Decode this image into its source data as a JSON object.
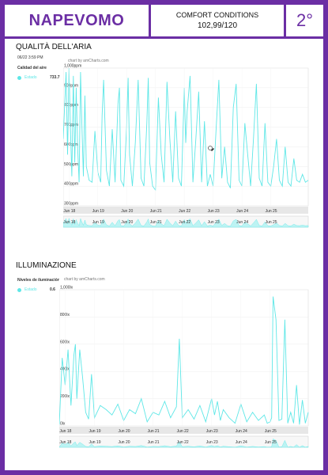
{
  "header": {
    "brand": "NAPEVOMO",
    "comfort_label": "COMFORT CONDITIONS",
    "comfort_value": "102,99/120",
    "floor": "2°"
  },
  "colors": {
    "accent": "#6b2ea4",
    "series": "#5ee7e7"
  },
  "air": {
    "title": "QUALITÀ DELL'ARIA",
    "timestamp": "06/22 3:59 PM",
    "legend_title": "Calidad del aire",
    "series_name": "Estado",
    "series_value": "733.7",
    "credit": "chart by amCharts.com"
  },
  "light": {
    "title": "ILLUMINAZIONE",
    "legend_title": "Niveles de iluminación",
    "series_name": "Estado",
    "series_value": "0.6",
    "credit": "chart by amCharts.com"
  },
  "chart_data": [
    {
      "type": "line",
      "title": "QUALITÀ DELL'ARIA",
      "y_ticks": [
        "300ppm",
        "400ppm",
        "500ppm",
        "600ppm",
        "700ppm",
        "800ppm",
        "900ppm",
        "1,000ppm"
      ],
      "ylim": [
        300,
        1000
      ],
      "x_ticks": [
        "Jun 18",
        "Jun 19",
        "Jun 20",
        "Jun 21",
        "Jun 22",
        "Jun 23",
        "Jun 24",
        "Jun 25"
      ],
      "x_range_days": [
        17.8,
        26.3
      ],
      "series": [
        {
          "name": "Estado",
          "x": [
            17.8,
            17.9,
            17.95,
            18.0,
            18.05,
            18.1,
            18.15,
            18.2,
            18.25,
            18.3,
            18.35,
            18.4,
            18.45,
            18.5,
            18.55,
            18.6,
            18.7,
            18.8,
            18.9,
            19.0,
            19.1,
            19.15,
            19.2,
            19.3,
            19.4,
            19.5,
            19.6,
            19.7,
            19.75,
            19.8,
            19.9,
            20.0,
            20.05,
            20.1,
            20.2,
            20.3,
            20.4,
            20.5,
            20.6,
            20.7,
            20.75,
            20.8,
            20.9,
            21.0,
            21.1,
            21.2,
            21.3,
            21.4,
            21.5,
            21.6,
            21.7,
            21.8,
            21.9,
            22.0,
            22.05,
            22.1,
            22.2,
            22.3,
            22.4,
            22.5,
            22.6,
            22.7,
            22.8,
            22.9,
            23.0,
            23.1,
            23.2,
            23.3,
            23.4,
            23.5,
            23.6,
            23.7,
            23.8,
            23.9,
            24.0,
            24.1,
            24.2,
            24.3,
            24.4,
            24.5,
            24.6,
            24.7,
            24.8,
            24.9,
            25.0,
            25.1,
            25.2,
            25.3,
            25.4,
            25.5,
            25.6,
            25.7,
            25.8,
            25.9,
            26.0,
            26.1,
            26.2,
            26.3
          ],
          "y": [
            640,
            980,
            560,
            1000,
            700,
            450,
            960,
            520,
            900,
            600,
            420,
            980,
            700,
            450,
            860,
            500,
            430,
            420,
            680,
            470,
            420,
            760,
            940,
            480,
            400,
            690,
            420,
            820,
            900,
            430,
            400,
            700,
            950,
            560,
            400,
            620,
            940,
            440,
            400,
            720,
            950,
            520,
            400,
            380,
            850,
            560,
            420,
            930,
            640,
            420,
            780,
            440,
            400,
            900,
            620,
            780,
            960,
            420,
            640,
            880,
            420,
            730,
            400,
            460,
            400,
            680,
            940,
            440,
            600,
            420,
            390,
            800,
            920,
            430,
            400,
            720,
            560,
            400,
            640,
            920,
            440,
            400,
            720,
            420,
            400,
            500,
            640,
            430,
            400,
            600,
            420,
            400,
            540,
            430,
            420,
            460,
            420,
            430
          ]
        }
      ]
    },
    {
      "type": "line",
      "title": "ILLUMINAZIONE",
      "y_ticks": [
        "0lx",
        "200lx",
        "400lx",
        "600lx",
        "800lx",
        "1,000lx"
      ],
      "ylim": [
        0,
        1000
      ],
      "x_ticks": [
        "Jun 18",
        "Jun 19",
        "Jun 20",
        "Jun 21",
        "Jun 22",
        "Jun 23",
        "Jun 24",
        "Jun 25"
      ],
      "x_range_days": [
        17.8,
        26.3
      ],
      "series": [
        {
          "name": "Estado",
          "x": [
            17.8,
            17.9,
            18.0,
            18.1,
            18.2,
            18.3,
            18.35,
            18.4,
            18.5,
            18.6,
            18.7,
            18.8,
            18.9,
            19.0,
            19.2,
            19.4,
            19.6,
            19.8,
            20.0,
            20.2,
            20.4,
            20.6,
            20.8,
            21.0,
            21.2,
            21.4,
            21.6,
            21.8,
            21.9,
            22.0,
            22.2,
            22.4,
            22.6,
            22.8,
            23.0,
            23.1,
            23.2,
            23.3,
            23.4,
            23.6,
            23.8,
            24.0,
            24.2,
            24.4,
            24.6,
            24.8,
            24.9,
            25.0,
            25.05,
            25.1,
            25.2,
            25.3,
            25.4,
            25.5,
            25.6,
            25.7,
            25.8,
            25.9,
            26.0,
            26.1,
            26.2,
            26.3
          ],
          "y": [
            10,
            500,
            300,
            560,
            150,
            520,
            600,
            200,
            560,
            350,
            100,
            50,
            380,
            60,
            150,
            120,
            80,
            160,
            40,
            120,
            90,
            200,
            30,
            100,
            80,
            180,
            60,
            140,
            640,
            60,
            120,
            50,
            150,
            30,
            200,
            80,
            180,
            40,
            120,
            60,
            20,
            160,
            30,
            100,
            40,
            80,
            20,
            30,
            60,
            950,
            780,
            40,
            50,
            780,
            20,
            100,
            20,
            300,
            10,
            190,
            20,
            100
          ]
        }
      ]
    }
  ]
}
